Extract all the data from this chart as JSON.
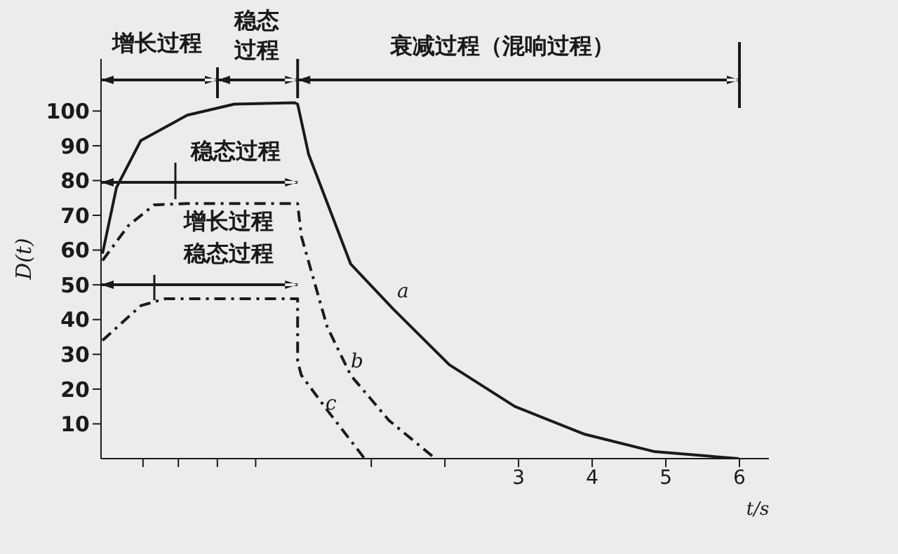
{
  "chart_data": {
    "type": "line",
    "xlabel": "t/s",
    "ylabel": "D(t)",
    "annotations": [
      "增长过程",
      "稳态过程",
      "衰减过程（混响过程）",
      "稳态过程",
      "增长过程",
      "稳态过程"
    ],
    "xlim": [
      -2.67,
      6.4
    ],
    "ylim": [
      0,
      115
    ],
    "xticks": [
      {
        "value": -2.1,
        "label": null
      },
      {
        "value": -1.62,
        "label": null
      },
      {
        "value": -1.09,
        "label": null
      },
      {
        "value": -0.57,
        "label": null
      },
      {
        "value": 1,
        "label": null
      },
      {
        "value": 2,
        "label": null
      },
      3,
      4,
      5,
      6
    ],
    "yticks": [
      10,
      20,
      30,
      40,
      50,
      60,
      70,
      80,
      90,
      100
    ],
    "marker": "none",
    "series": [
      {
        "name": "a",
        "color": "#1a1a1a",
        "line_style": "solid",
        "x": [
          -2.65,
          -2.46,
          -2.13,
          -1.5,
          -0.86,
          -0.04,
          0,
          0.15,
          0.72,
          1.3,
          2.06,
          2.95,
          3.9,
          4.85,
          5.99
        ],
        "values": [
          59,
          78,
          91.5,
          98.8,
          102,
          102.4,
          102,
          87.5,
          56,
          43,
          27,
          15,
          7,
          2,
          0
        ]
      },
      {
        "name": "b",
        "color": "#1a1a1a",
        "line_style": "dashed",
        "x": [
          -2.65,
          -2.3,
          -1.95,
          -1.5,
          -0.5,
          0,
          0.05,
          0.4,
          0.72,
          1.24,
          1.87
        ],
        "values": [
          57,
          67,
          73,
          73.4,
          73.4,
          73.4,
          64,
          38,
          24,
          11,
          0
        ]
      },
      {
        "name": "c",
        "color": "#1a1a1a",
        "line_style": "dashed",
        "x": [
          -2.65,
          -2.13,
          -1.8,
          -1.2,
          0,
          0,
          0.05,
          0.4,
          0.91
        ],
        "values": [
          34,
          44,
          46,
          46,
          46,
          28,
          24,
          14,
          0
        ]
      }
    ]
  }
}
